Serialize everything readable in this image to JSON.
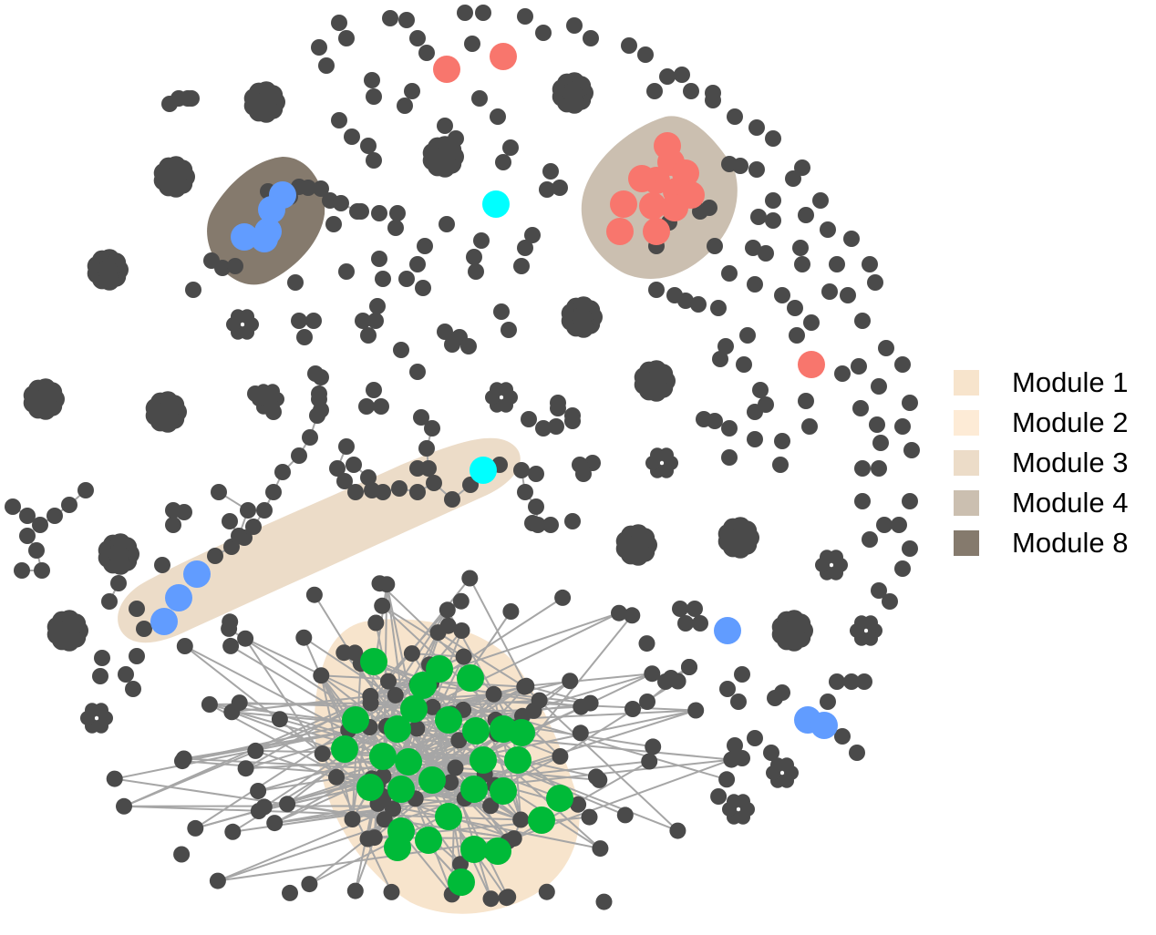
{
  "colors": {
    "background": "#ffffff",
    "node_default": "#4a4a4a",
    "edge": "#a6a6a6",
    "highlight_red": "#f8766d",
    "highlight_green": "#00ba38",
    "highlight_blue": "#619cff",
    "highlight_cyan": "#00ffff"
  },
  "legend": [
    {
      "label": "Module 1",
      "color": "#f7e4cc"
    },
    {
      "label": "Module 2",
      "color": "#fdebd6"
    },
    {
      "label": "Module 3",
      "color": "#ecdcc8"
    },
    {
      "label": "Module 4",
      "color": "#cbbfb0"
    },
    {
      "label": "Module 8",
      "color": "#857a6d"
    }
  ]
}
